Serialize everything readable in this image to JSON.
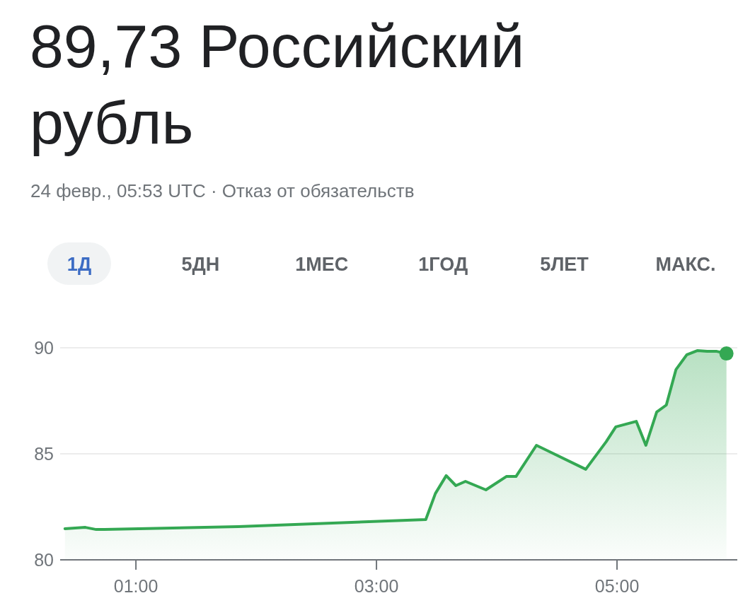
{
  "chart_data": {
    "type": "area",
    "title": "89,73 Российский рубль",
    "subtitle": "24 февр., 05:53 UTC · Отказ от обязательств",
    "annotations": [
      "1Д",
      "5ДН",
      "1МЕС",
      "1ГОД",
      "5ЛЕТ",
      "МАКС."
    ],
    "series": [
      {
        "color": "#34a853",
        "x": [
          0.41,
          0.58,
          0.67,
          0.74,
          1.85,
          3.41,
          3.49,
          3.58,
          3.66,
          3.74,
          3.91,
          4.08,
          4.16,
          4.33,
          4.74,
          4.91,
          4.99,
          5.16,
          5.24,
          5.33,
          5.41,
          5.49,
          5.58,
          5.67,
          5.75,
          5.83,
          5.91
        ],
        "values": [
          81.47,
          81.53,
          81.43,
          81.43,
          81.57,
          81.9,
          83.13,
          83.97,
          83.5,
          83.7,
          83.3,
          83.93,
          83.93,
          85.4,
          84.27,
          85.57,
          86.27,
          86.53,
          85.4,
          86.97,
          87.3,
          88.97,
          89.67,
          89.87,
          89.83,
          89.83,
          89.73
        ]
      },
      {
        "type": "scatter",
        "marker": "circle",
        "color": "#34a853",
        "x": [
          5.91
        ],
        "values": [
          89.73
        ]
      }
    ],
    "xlim": [
      0.37,
      6.0
    ],
    "xticks": [
      {
        "value": 1,
        "label": "01:00"
      },
      {
        "value": 3,
        "label": "03:00"
      },
      {
        "value": 5,
        "label": "05:00"
      }
    ],
    "ylim": [
      80,
      90
    ],
    "yticks": [
      80,
      85,
      90
    ],
    "grid": "y",
    "line_style": "solid"
  }
}
